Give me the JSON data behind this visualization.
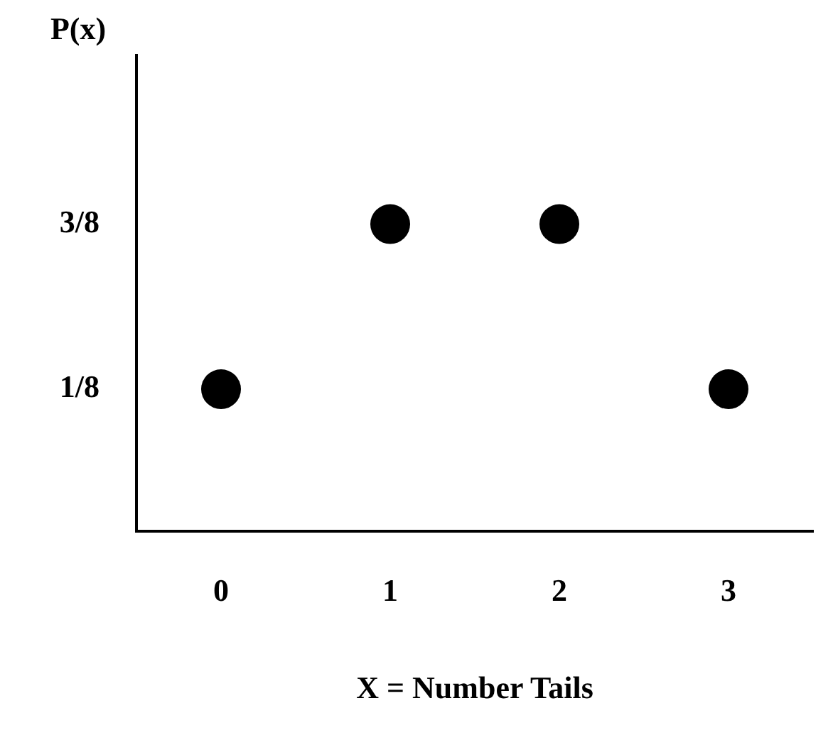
{
  "chart_data": {
    "type": "scatter",
    "xlabel": "X = Number Tails",
    "ylabel": "P(x)",
    "categories": [
      "0",
      "1",
      "2",
      "3"
    ],
    "series": [
      {
        "color": "#000000",
        "values": [
          0.125,
          0.375,
          0.375,
          0.125
        ]
      }
    ],
    "ylim": [
      -0.09,
      0.63
    ],
    "yticks": [
      {
        "value": 0.125,
        "label": "1/8"
      },
      {
        "value": 0.375,
        "label": "3/8"
      }
    ],
    "grid": false,
    "legend": false,
    "marker": "circle"
  }
}
